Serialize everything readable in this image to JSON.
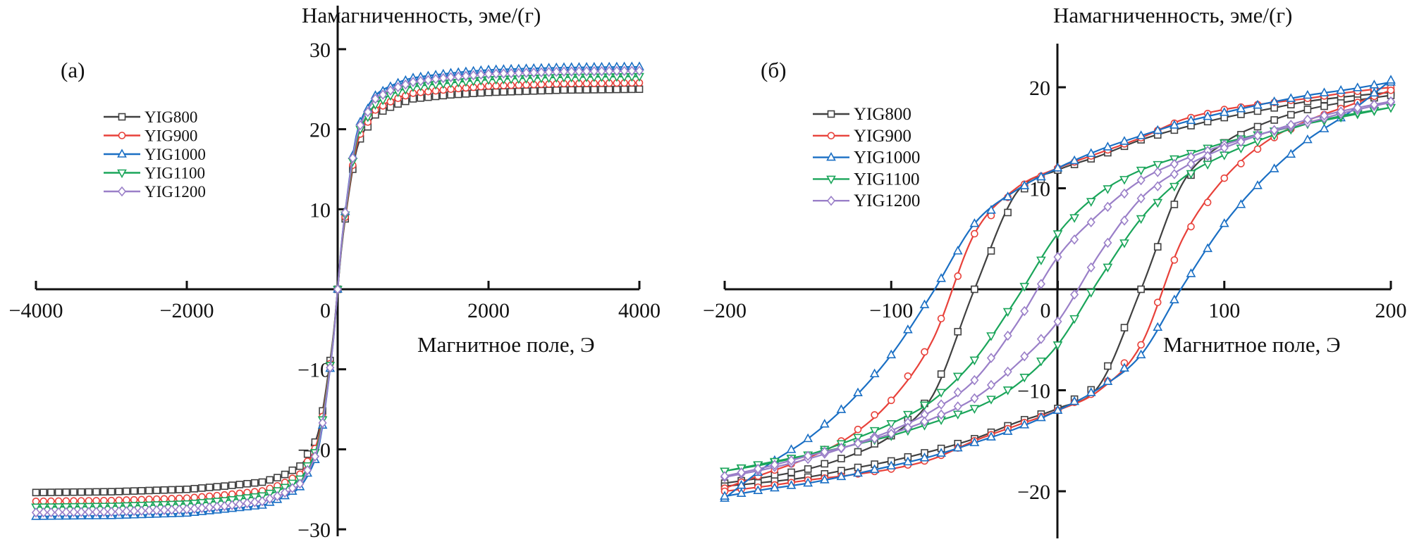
{
  "chart_data": [
    {
      "type": "line",
      "panel_label": "(а)",
      "ylabel": "Намагниченность, эме/(г)",
      "xlabel": "Магнитное поле, Э",
      "xlim": [
        -4000,
        4000
      ],
      "ylim": [
        -30,
        30
      ],
      "xticks": [
        "−4000",
        "−2000",
        "0",
        "2000",
        "4000"
      ],
      "yticks": [
        "30",
        "20",
        "10",
        "−10",
        "−20",
        "−30"
      ],
      "xtick_values": [
        -4000,
        -2000,
        0,
        2000,
        4000
      ],
      "ytick_values": [
        30,
        20,
        10,
        -10,
        -20,
        -30
      ],
      "legend_placement": "upper-left",
      "grid": false,
      "x": [
        -4000,
        -3000,
        -2000,
        -1500,
        -1000,
        -750,
        -500,
        -300,
        -200,
        -100,
        -50,
        0,
        50,
        100,
        200,
        300,
        500,
        750,
        1000,
        1500,
        2000,
        3000,
        4000
      ],
      "series": [
        {
          "name": "YIG800",
          "color": "#404040",
          "marker": "square",
          "values": [
            -25.4,
            -25.3,
            -25.0,
            -24.6,
            -24.1,
            -23.4,
            -22.1,
            -19.1,
            -15.2,
            -8.9,
            -5.1,
            0,
            5.0,
            8.8,
            15.0,
            18.8,
            21.8,
            23.0,
            23.8,
            24.3,
            24.6,
            24.9,
            25.0
          ]
        },
        {
          "name": "YIG900",
          "color": "#e8413a",
          "marker": "circle",
          "values": [
            -26.5,
            -26.4,
            -26.1,
            -25.7,
            -25.2,
            -24.4,
            -23.1,
            -19.9,
            -15.9,
            -9.3,
            -5.3,
            0,
            5.2,
            9.0,
            15.5,
            19.4,
            22.4,
            23.7,
            24.5,
            25.0,
            25.4,
            25.7,
            25.8
          ]
        },
        {
          "name": "YIG1000",
          "color": "#1a6fc4",
          "marker": "triangle-up",
          "values": [
            -28.4,
            -28.3,
            -28.0,
            -27.5,
            -27.0,
            -26.1,
            -24.7,
            -21.3,
            -17.0,
            -9.9,
            -5.7,
            0,
            5.6,
            9.7,
            16.7,
            20.9,
            24.2,
            25.6,
            26.4,
            27.0,
            27.4,
            27.7,
            27.8
          ]
        },
        {
          "name": "YIG1100",
          "color": "#1aa55a",
          "marker": "triangle-down",
          "values": [
            -27.2,
            -27.1,
            -26.8,
            -26.4,
            -25.8,
            -25.0,
            -23.7,
            -20.4,
            -16.3,
            -9.5,
            -5.4,
            0,
            5.3,
            9.3,
            16.0,
            20.0,
            23.1,
            24.5,
            25.3,
            25.8,
            26.2,
            26.5,
            26.6
          ]
        },
        {
          "name": "YIG1200",
          "color": "#9a7fc8",
          "marker": "diamond",
          "values": [
            -27.9,
            -27.8,
            -27.5,
            -27.1,
            -26.5,
            -25.7,
            -24.3,
            -20.9,
            -16.7,
            -9.8,
            -5.6,
            0,
            5.5,
            9.6,
            16.4,
            20.5,
            23.8,
            25.1,
            25.9,
            26.5,
            26.9,
            27.2,
            27.3
          ]
        }
      ]
    },
    {
      "type": "line",
      "panel_label": "(б)",
      "ylabel": "Намагниченность, эме/(г)",
      "xlabel": "Магнитное поле, Э",
      "xlim": [
        -200,
        200
      ],
      "ylim": [
        -25,
        25
      ],
      "xticks": [
        "−200",
        "−100",
        "0",
        "100",
        "200"
      ],
      "yticks": [
        "20",
        "10",
        "−10",
        "−20"
      ],
      "xtick_values": [
        -200,
        -100,
        0,
        100,
        200
      ],
      "ytick_values": [
        20,
        10,
        -10,
        -20
      ],
      "legend_placement": "upper-left",
      "grid": false,
      "x": [
        -200,
        -175,
        -150,
        -125,
        -100,
        -75,
        -50,
        -25,
        0,
        25,
        50,
        75,
        100,
        125,
        150,
        175,
        200
      ],
      "series": [
        {
          "name": "YIG800",
          "color": "#404040",
          "marker": "square",
          "descending": [
            -19.2,
            -18.6,
            -17.8,
            -16.5,
            -14.5,
            -10.5,
            0,
            9.5,
            11.8,
            13.2,
            14.8,
            16.0,
            17.0,
            17.8,
            18.6,
            19.1,
            19.5
          ],
          "ascending": [
            -19.5,
            -19.1,
            -18.6,
            -17.8,
            -17.0,
            -16.0,
            -14.8,
            -13.2,
            -11.8,
            -9.5,
            0,
            10.5,
            14.5,
            16.5,
            17.8,
            18.6,
            19.2
          ]
        },
        {
          "name": "YIG900",
          "color": "#e8413a",
          "marker": "circle",
          "descending": [
            -19.7,
            -18.2,
            -16.7,
            -14.6,
            -11.0,
            -5.0,
            5.5,
            10.0,
            12.0,
            13.5,
            15.0,
            16.8,
            17.8,
            18.4,
            18.9,
            19.5,
            20.0
          ],
          "ascending": [
            -20.0,
            -19.5,
            -18.9,
            -18.4,
            -17.8,
            -16.8,
            -15.0,
            -13.5,
            -12.0,
            -10.0,
            -5.5,
            5.0,
            11.0,
            14.6,
            16.7,
            18.2,
            19.7
          ]
        },
        {
          "name": "YIG1000",
          "color": "#1a6fc4",
          "marker": "triangle-up",
          "descending": [
            -20.7,
            -17.5,
            -14.8,
            -11.2,
            -6.5,
            -0.3,
            6.5,
            9.8,
            12.0,
            13.8,
            15.2,
            16.5,
            17.5,
            18.4,
            19.2,
            19.8,
            20.5
          ],
          "ascending": [
            -20.5,
            -19.8,
            -19.2,
            -18.4,
            -17.5,
            -16.5,
            -15.2,
            -13.8,
            -12.0,
            -9.8,
            -6.5,
            0.3,
            6.5,
            11.2,
            14.8,
            17.5,
            20.7
          ]
        },
        {
          "name": "YIG1100",
          "color": "#1aa55a",
          "marker": "triangle-down",
          "descending": [
            -18.0,
            -17.3,
            -16.4,
            -15.0,
            -13.3,
            -11.0,
            -7.0,
            -1.0,
            5.5,
            9.5,
            11.8,
            13.2,
            14.5,
            15.5,
            16.4,
            17.2,
            18.0
          ],
          "ascending": [
            -18.0,
            -17.2,
            -16.4,
            -15.5,
            -14.5,
            -13.2,
            -11.8,
            -9.5,
            -5.5,
            1.0,
            7.0,
            11.0,
            13.3,
            15.0,
            16.4,
            17.3,
            18.0
          ]
        },
        {
          "name": "YIG1200",
          "color": "#9a7fc8",
          "marker": "diamond",
          "descending": [
            -18.6,
            -17.8,
            -16.8,
            -15.5,
            -14.0,
            -12.0,
            -9.0,
            -3.5,
            3.2,
            7.5,
            10.8,
            12.8,
            14.3,
            15.5,
            16.5,
            17.6,
            18.5
          ],
          "ascending": [
            -18.5,
            -17.6,
            -16.5,
            -15.5,
            -14.3,
            -12.8,
            -10.8,
            -7.5,
            -3.2,
            3.5,
            9.0,
            12.0,
            14.0,
            15.5,
            16.8,
            17.8,
            18.6
          ]
        }
      ]
    }
  ]
}
